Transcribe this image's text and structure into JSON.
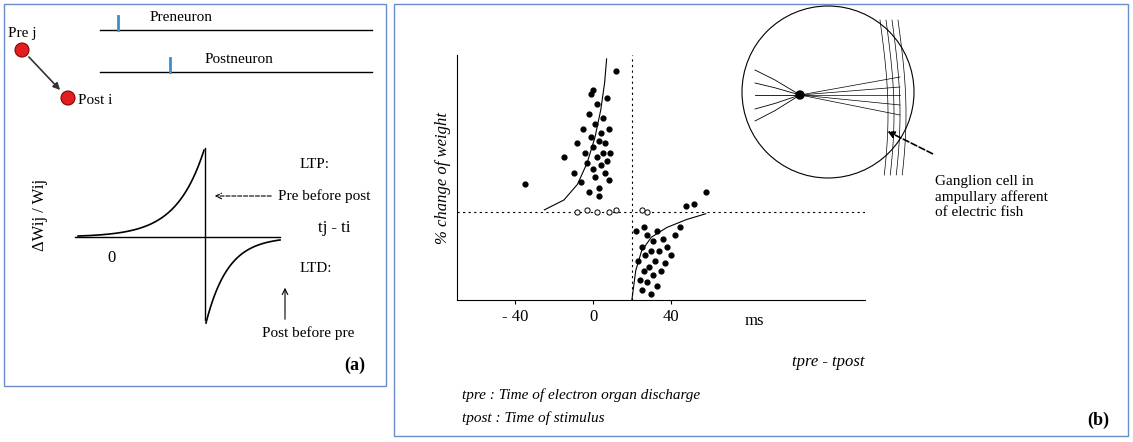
{
  "panel_a": {
    "label": "(a)",
    "traces": {
      "pre": "Preneuron",
      "post": "Postneuron"
    },
    "nodes": [
      "Pre j",
      "Post i"
    ],
    "y_label": "ΔWij / Wij",
    "x_label": "tj - ti",
    "origin": "0",
    "ltp": {
      "title": "LTP:",
      "note": "Pre before post"
    },
    "ltd": {
      "title": "LTD:",
      "note": "Post before pre"
    }
  },
  "chart_data": {
    "type": "scatter",
    "label": "(b)",
    "x_label": "tpre - tpost",
    "x_unit": "ms",
    "y_label": "% change of weight",
    "xlim": [
      -70,
      140
    ],
    "ylim": [
      -45,
      80
    ],
    "xticks": [
      {
        "value": -40,
        "label": "- 40"
      },
      0,
      40
    ],
    "tick_labels": "x",
    "color": "#000000",
    "marker": "o",
    "x": [
      -35,
      -15,
      -10,
      -8,
      -6,
      -5,
      -4,
      -3,
      -2,
      -2,
      -1,
      0,
      0,
      1,
      1,
      2,
      2,
      3,
      3,
      4,
      4,
      5,
      5,
      6,
      6,
      7,
      7,
      8,
      8,
      9,
      -1,
      3,
      12,
      0,
      22,
      23,
      24,
      25,
      25,
      26,
      26,
      27,
      28,
      28,
      29,
      30,
      30,
      31,
      31,
      32,
      33,
      33,
      34,
      35,
      36,
      37,
      38,
      40,
      42,
      45,
      48,
      52,
      58
    ],
    "values": [
      14,
      28,
      20,
      35,
      15,
      42,
      30,
      25,
      50,
      10,
      38,
      22,
      33,
      45,
      18,
      28,
      55,
      36,
      12,
      24,
      40,
      30,
      48,
      20,
      35,
      26,
      58,
      42,
      16,
      30,
      60,
      8,
      72,
      62,
      -10,
      -25,
      -35,
      -18,
      -40,
      -8,
      -30,
      -22,
      -12,
      -36,
      -28,
      -20,
      -42,
      -15,
      -32,
      -25,
      -10,
      -38,
      -20,
      -30,
      -14,
      -26,
      -18,
      -22,
      -12,
      -8,
      3,
      4,
      10
    ],
    "hollow_points": {
      "x": [
        -8,
        -3,
        2,
        8,
        12,
        25,
        28
      ],
      "values": [
        0,
        1,
        0,
        0,
        1,
        1,
        0
      ]
    },
    "curves": [
      {
        "x": [
          -25,
          -15,
          -8,
          -3,
          1,
          4,
          6,
          7
        ],
        "values": [
          1,
          6,
          14,
          25,
          38,
          52,
          66,
          78
        ]
      },
      {
        "x": [
          20,
          22,
          25,
          30,
          38,
          48,
          58
        ],
        "values": [
          -45,
          -30,
          -20,
          -13,
          -8,
          -4,
          -1
        ]
      }
    ],
    "vline_x": 20,
    "hline_y": 0,
    "annotation": "Ganglion cell in\nampullary afferent\nof electric fish",
    "notes": [
      "tpre : Time of electron organ discharge",
      "tpost : Time of stimulus"
    ]
  }
}
